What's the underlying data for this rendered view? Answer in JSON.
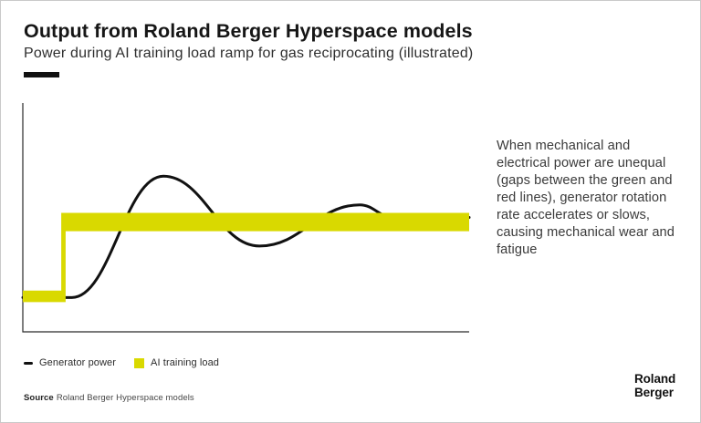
{
  "header": {
    "title": "Output from Roland Berger Hyperspace models",
    "subtitle": "Power during AI training load ramp for gas reciprocating (illustrated)"
  },
  "annotation": {
    "text": "When mechanical and electrical power are unequal (gaps between the green and red lines), generator rotation rate accelerates or slows, causing mechanical wear and fatigue"
  },
  "legend": {
    "items": [
      {
        "label": "Generator power",
        "swatch": "line",
        "color": "#111111"
      },
      {
        "label": "AI training load",
        "swatch": "square",
        "color": "#d9d900"
      }
    ]
  },
  "footer": {
    "source_label": "Source",
    "source_text": "Roland Berger Hyperspace models"
  },
  "logo": {
    "line1": "Roland",
    "line2": "Berger"
  },
  "colors": {
    "accent_yellow": "#d9d900",
    "ink": "#111111",
    "axis": "#2a2a2a"
  },
  "chart_data": {
    "type": "line",
    "title": "Power during AI training load ramp for gas reciprocating (illustrated)",
    "xlabel": "",
    "ylabel": "",
    "x": {
      "range": [
        0,
        100
      ],
      "ticks": []
    },
    "y": {
      "range": [
        0,
        100
      ],
      "ticks": []
    },
    "grid": false,
    "legend_position": "bottom-left",
    "series": [
      {
        "name": "Generator power",
        "type": "smooth-line",
        "color": "#111111",
        "stroke_width": 3,
        "points": [
          [
            0,
            15
          ],
          [
            11,
            15
          ],
          [
            31.5,
            68
          ],
          [
            53,
            37.5
          ],
          [
            75.5,
            55.5
          ],
          [
            83,
            50
          ],
          [
            100,
            50
          ]
        ]
      },
      {
        "name": "AI training load",
        "type": "band",
        "color": "#d9d900",
        "steps": [
          {
            "from": 0,
            "to": 9,
            "value": 15.5,
            "half_width": 2.5
          },
          {
            "from": 9,
            "to": 100,
            "value": 48,
            "half_width": 4
          }
        ],
        "polygon": [
          [
            0,
            18
          ],
          [
            8.6,
            18
          ],
          [
            8.6,
            52
          ],
          [
            100,
            52
          ],
          [
            100,
            44
          ],
          [
            9.6,
            44
          ],
          [
            9.6,
            13
          ],
          [
            0,
            13
          ]
        ]
      }
    ]
  }
}
